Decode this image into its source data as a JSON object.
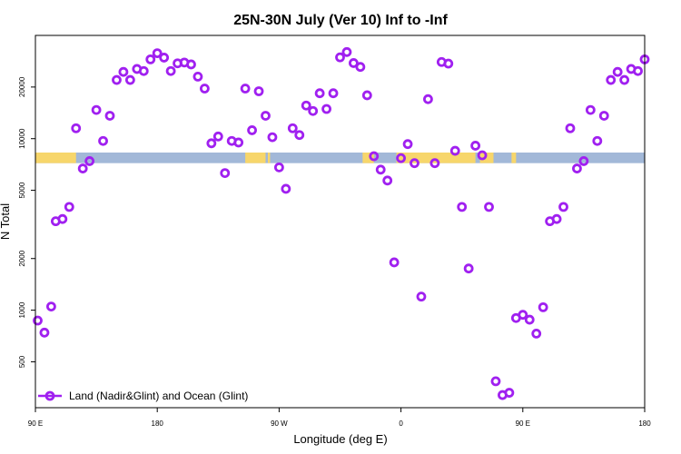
{
  "chart_data": {
    "type": "scatter",
    "title": "25N-30N July (Ver 10)   Inf to -Inf",
    "xlabel": "Longitude (deg E)",
    "ylabel": "N Total",
    "xlim": [
      -90,
      180
    ],
    "ylim": [
      270,
      40000
    ],
    "y_scale": "log",
    "x_ticks": [
      {
        "value": -90,
        "label": "90 E"
      },
      {
        "value": -36,
        "label": "180"
      },
      {
        "value": 18,
        "label": "90 W"
      },
      {
        "value": 72,
        "label": "0"
      },
      {
        "value": 126,
        "label": "90 E"
      },
      {
        "value": 180,
        "label": "180"
      }
    ],
    "y_ticks": [
      {
        "value": 500,
        "label": "500"
      },
      {
        "value": 1000,
        "label": "1000"
      },
      {
        "value": 2000,
        "label": "2000"
      },
      {
        "value": 5000,
        "label": "5000"
      },
      {
        "value": 10000,
        "label": "10000"
      },
      {
        "value": 20000,
        "label": "20000"
      }
    ],
    "grid": false,
    "legend": {
      "position": "bottom-left",
      "entries": [
        "Land (Nadir&Glint) and Ocean (Glint)"
      ]
    },
    "colors": {
      "points": "#a020f0",
      "land": "#f7d66b",
      "ocean": "#a2b8d8"
    },
    "surface_band": {
      "y_range": [
        7200,
        8300
      ],
      "land_segments": [
        [
          -90,
          -72
        ],
        [
          3,
          12
        ],
        [
          13,
          14
        ],
        [
          55,
          60
        ],
        [
          70,
          105
        ],
        [
          107,
          113
        ],
        [
          121,
          123
        ]
      ]
    },
    "series": [
      {
        "name": "Land (Nadir&Glint) and Ocean (Glint)",
        "x": [
          -89,
          -86,
          -83,
          -81,
          -78,
          -75,
          -72,
          -69,
          -66,
          -63,
          -60,
          -57,
          -54,
          -51,
          -48,
          -45,
          -42,
          -39,
          -36,
          -33,
          -30,
          -27,
          -24,
          -21,
          -18,
          -15,
          -12,
          -9,
          -6,
          -3,
          0,
          3,
          6,
          9,
          12,
          15,
          18,
          21,
          24,
          27,
          30,
          33,
          36,
          39,
          42,
          45,
          48,
          51,
          54,
          57,
          60,
          63,
          66,
          69,
          72,
          75,
          78,
          81,
          84,
          87,
          90,
          93,
          96,
          99,
          102,
          105,
          108,
          111,
          114,
          117,
          120,
          123,
          126,
          129,
          132,
          135,
          138,
          141,
          144,
          147,
          150,
          153,
          156,
          159,
          162,
          165,
          168,
          171,
          174,
          177,
          180
        ],
        "y": [
          870,
          740,
          1050,
          3300,
          3400,
          4000,
          11500,
          6700,
          7400,
          14700,
          9700,
          13600,
          22000,
          24500,
          22000,
          25500,
          24800,
          29000,
          31500,
          29700,
          24800,
          27500,
          27800,
          27100,
          23000,
          19600,
          9400,
          10300,
          6300,
          9700,
          9500,
          19600,
          11200,
          18900,
          13600,
          10200,
          6800,
          5100,
          11500,
          10500,
          15600,
          14500,
          18400,
          14900,
          18400,
          29800,
          32000,
          27600,
          26200,
          17900,
          7900,
          6600,
          5700,
          1900,
          7700,
          9300,
          7200,
          1200,
          17000,
          7200,
          28000,
          27400,
          8500,
          4000,
          1750,
          9100,
          8000,
          4000,
          385,
          320,
          330,
          900,
          940,
          880,
          730,
          1040,
          3300,
          3400,
          4000,
          11500,
          6700,
          7400,
          14700,
          9700,
          13600,
          22000,
          24500,
          22000,
          25500,
          24800,
          29000
        ]
      }
    ]
  }
}
